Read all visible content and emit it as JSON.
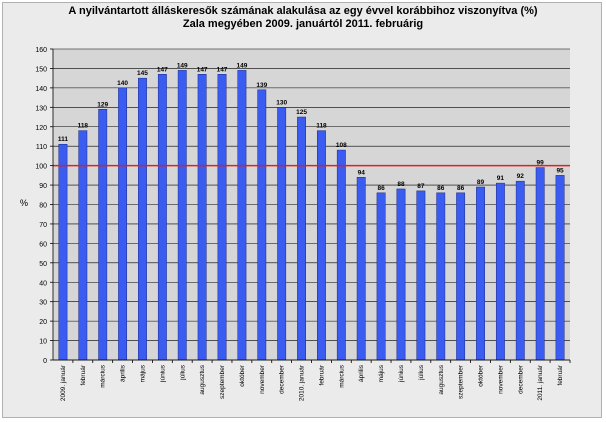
{
  "chart_data": {
    "type": "bar",
    "title": "A nyilvántartott álláskeresők számának alakulása az egy évvel korábbihoz viszonyítva (%)",
    "subtitle": "Zala megyében 2009. januártól 2011. februárig",
    "xlabel": "",
    "ylabel": "%",
    "ylim": [
      0,
      160
    ],
    "ytick_step": 10,
    "grid": true,
    "legend": "none",
    "reference_line": {
      "value": 100,
      "color": "#e02020"
    },
    "bar_color": "#3a5cf0",
    "categories": [
      "2009. január",
      "február",
      "március",
      "április",
      "május",
      "június",
      "július",
      "augusztus",
      "szeptember",
      "október",
      "november",
      "december",
      "2010. január",
      "február",
      "március",
      "április",
      "május",
      "június",
      "július",
      "augusztus",
      "szeptember",
      "október",
      "november",
      "december",
      "2011. január",
      "február"
    ],
    "values": [
      111,
      118,
      129,
      140,
      145,
      147,
      149,
      147,
      147,
      149,
      139,
      130,
      125,
      118,
      108,
      94,
      86,
      88,
      87,
      86,
      86,
      89,
      91,
      92,
      99,
      95
    ]
  }
}
